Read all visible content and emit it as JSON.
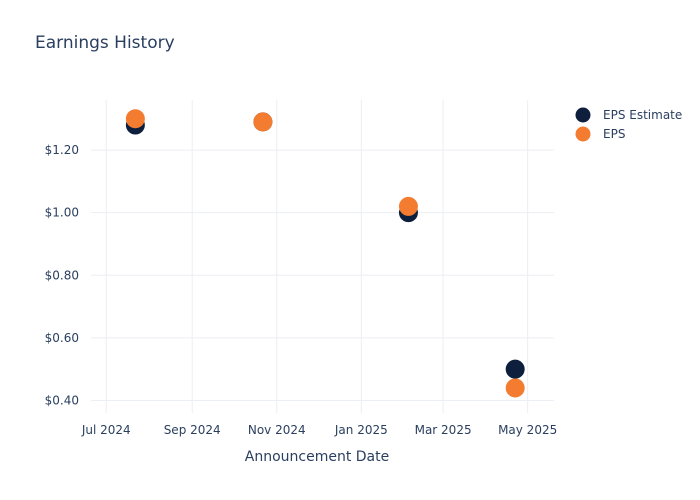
{
  "chart_data": {
    "type": "scatter",
    "title": "Earnings History",
    "xlabel": "Announcement Date",
    "ylabel": "",
    "x_type": "date",
    "xlim": [
      "2024-06-20",
      "2025-05-20"
    ],
    "ylim": [
      0.36,
      1.36
    ],
    "x_ticks": [
      {
        "value": "2024-07-01",
        "label": "Jul 2024"
      },
      {
        "value": "2024-09-01",
        "label": "Sep 2024"
      },
      {
        "value": "2024-11-01",
        "label": "Nov 2024"
      },
      {
        "value": "2025-01-01",
        "label": "Jan 2025"
      },
      {
        "value": "2025-03-01",
        "label": "Mar 2025"
      },
      {
        "value": "2025-05-01",
        "label": "May 2025"
      }
    ],
    "y_ticks": [
      {
        "value": 0.4,
        "label": "$0.40"
      },
      {
        "value": 0.6,
        "label": "$0.60"
      },
      {
        "value": 0.8,
        "label": "$0.80"
      },
      {
        "value": 1.0,
        "label": "$1.00"
      },
      {
        "value": 1.2,
        "label": "$1.20"
      }
    ],
    "grid": true,
    "legend_position": "top-right",
    "series": [
      {
        "name": "EPS Estimate",
        "color": "#0d1f3c",
        "points": [
          {
            "x": "2024-07-22",
            "y": 1.28
          },
          {
            "x": "2024-10-22",
            "y": 1.29
          },
          {
            "x": "2025-02-04",
            "y": 1.0
          },
          {
            "x": "2025-04-22",
            "y": 0.5
          }
        ]
      },
      {
        "name": "EPS",
        "color": "#f47c30",
        "points": [
          {
            "x": "2024-07-22",
            "y": 1.3
          },
          {
            "x": "2024-10-22",
            "y": 1.29
          },
          {
            "x": "2025-02-04",
            "y": 1.02
          },
          {
            "x": "2025-04-22",
            "y": 0.44
          }
        ]
      }
    ]
  }
}
